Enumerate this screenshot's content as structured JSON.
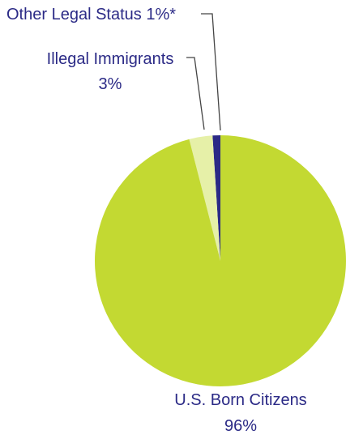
{
  "chart_data": {
    "type": "pie",
    "title": "",
    "slices": [
      {
        "label": "Other Legal Status",
        "value": 1,
        "display": "1%*",
        "color": "#2b2a86"
      },
      {
        "label": "Illegal Immigrants",
        "value": 3,
        "display": "3%",
        "color": "#e6f0a8"
      },
      {
        "label": "U.S. Born Citizens",
        "value": 96,
        "display": "96%",
        "color": "#c3d932"
      }
    ],
    "start_angle": "12 o'clock",
    "direction": "counter-clockwise",
    "label_color": "#2b2a86",
    "leader_color": "#444444"
  }
}
